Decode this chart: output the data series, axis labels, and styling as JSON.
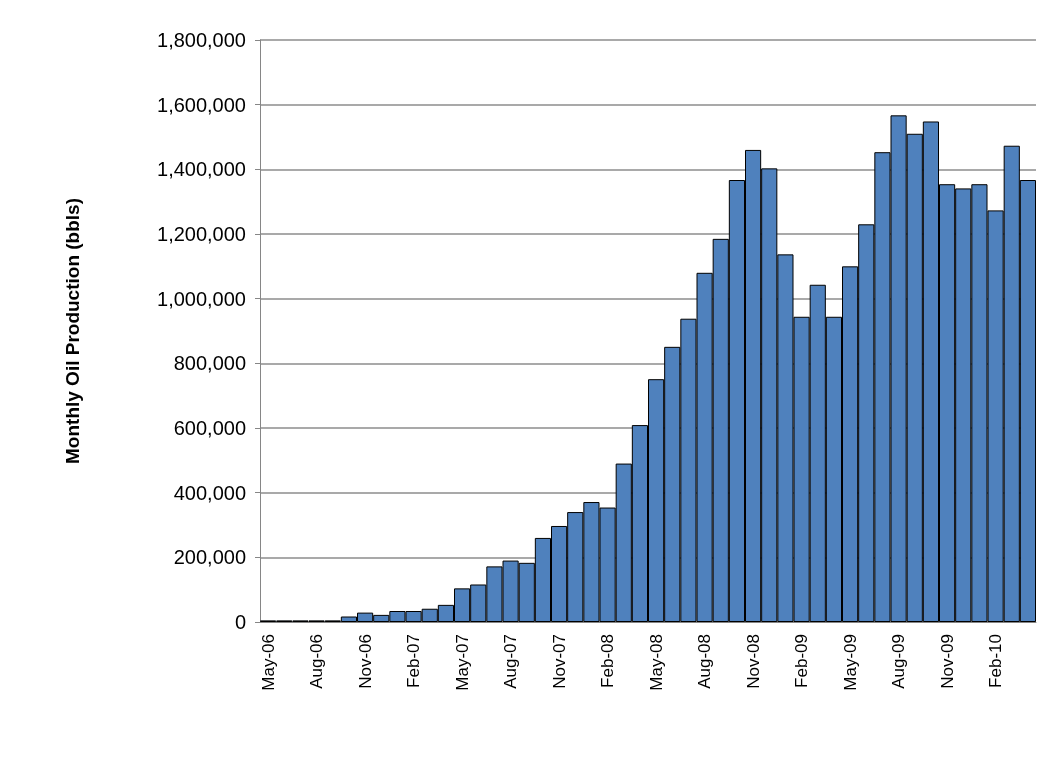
{
  "chart_data": {
    "type": "bar",
    "ylabel": "Monthly Oil Production (bbls)",
    "categories": [
      "May-06",
      null,
      null,
      "Aug-06",
      null,
      null,
      "Nov-06",
      null,
      null,
      "Feb-07",
      null,
      null,
      "May-07",
      null,
      null,
      "Aug-07",
      null,
      null,
      "Nov-07",
      null,
      null,
      "Feb-08",
      null,
      null,
      "May-08",
      null,
      null,
      "Aug-08",
      null,
      null,
      "Nov-08",
      null,
      null,
      "Feb-09",
      null,
      null,
      "May-09",
      null,
      null,
      "Aug-09",
      null,
      null,
      "Nov-09",
      null,
      null,
      "Feb-10",
      null,
      null
    ],
    "values": [
      5000,
      5000,
      5000,
      5000,
      5000,
      17000,
      29000,
      22000,
      34000,
      34000,
      41000,
      53000,
      104000,
      116000,
      172000,
      190000,
      183000,
      260000,
      297000,
      340000,
      371000,
      354000,
      490000,
      609000,
      751000,
      851000,
      938000,
      1080000,
      1185000,
      1367000,
      1460000,
      1403000,
      1137000,
      944000,
      1043000,
      944000,
      1100000,
      1230000,
      1453000,
      1567000,
      1510000,
      1548000,
      1354000,
      1341000,
      1354000,
      1273000,
      1473000,
      1367000
    ],
    "color": "#4f81bd",
    "ylim": [
      0,
      1800000
    ],
    "yticks": [
      0,
      {
        "value": 200000,
        "label": "200,000"
      },
      {
        "value": 400000,
        "label": "400,000"
      },
      {
        "value": 600000,
        "label": "600,000"
      },
      {
        "value": 800000,
        "label": "800,000"
      },
      {
        "value": 1000000,
        "label": "1,000,000"
      },
      {
        "value": 1200000,
        "label": "1,200,000"
      },
      {
        "value": 1400000,
        "label": "1,400,000"
      },
      {
        "value": 1600000,
        "label": "1,600,000"
      },
      {
        "value": 1800000,
        "label": "1,800,000"
      }
    ],
    "grid": "y"
  }
}
